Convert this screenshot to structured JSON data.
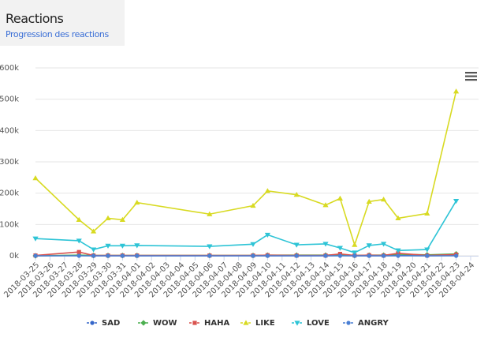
{
  "header": {
    "title": "Reactions",
    "subtitle": "Progression des reactions"
  },
  "chart_data": {
    "type": "line",
    "x": [
      "2018-03-25",
      "2018-03-28",
      "2018-03-29",
      "2018-03-30",
      "2018-03-31",
      "2018-04-01",
      "2018-04-06",
      "2018-04-09",
      "2018-04-10",
      "2018-04-12",
      "2018-04-14",
      "2018-04-15",
      "2018-04-16",
      "2018-04-17",
      "2018-04-18",
      "2018-04-19",
      "2018-04-21",
      "2018-04-23"
    ],
    "xlim": [
      "2018-03-25",
      "2018-04-24"
    ],
    "xticks": [
      "2018-03-25",
      "2018-03-26",
      "2018-03-27",
      "2018-03-28",
      "2018-03-29",
      "2018-03-30",
      "2018-03-31",
      "2018-04-01",
      "2018-04-02",
      "2018-04-03",
      "2018-04-04",
      "2018-04-05",
      "2018-04-06",
      "2018-04-07",
      "2018-04-08",
      "2018-04-09",
      "2018-04-10",
      "2018-04-11",
      "2018-04-12",
      "2018-04-13",
      "2018-04-14",
      "2018-04-15",
      "2018-04-16",
      "2018-04-17",
      "2018-04-18",
      "2018-04-19",
      "2018-04-20",
      "2018-04-21",
      "2018-04-22",
      "2018-04-23",
      "2018-04-24"
    ],
    "ylim": [
      0,
      600000
    ],
    "yticks": [
      {
        "value": 0,
        "label": "0k"
      },
      {
        "value": 100000,
        "label": "100k"
      },
      {
        "value": 200000,
        "label": "200k"
      },
      {
        "value": 300000,
        "label": "300k"
      },
      {
        "value": 400000,
        "label": "400k"
      },
      {
        "value": 500000,
        "label": "500k"
      },
      {
        "value": 600000,
        "label": "600k"
      }
    ],
    "grid": true,
    "legend": "bottom",
    "series": [
      {
        "name": "SAD",
        "color": "#3566c9",
        "marker": "circle",
        "values": [
          0,
          1000,
          0,
          0,
          0,
          0,
          0,
          0,
          0,
          0,
          0,
          1000,
          0,
          0,
          0,
          1000,
          0,
          1000
        ]
      },
      {
        "name": "WOW",
        "color": "#4caf50",
        "marker": "diamond",
        "values": [
          0,
          2000,
          1000,
          1000,
          1000,
          1000,
          1000,
          1000,
          2000,
          2000,
          2000,
          3000,
          1000,
          2000,
          2000,
          5000,
          3000,
          6000
        ]
      },
      {
        "name": "HAHA",
        "color": "#d9534f",
        "marker": "square",
        "values": [
          1000,
          12000,
          1000,
          1000,
          1000,
          1000,
          1000,
          1000,
          2000,
          1000,
          1000,
          6000,
          1000,
          2000,
          1000,
          8000,
          1000,
          4000
        ]
      },
      {
        "name": "LIKE",
        "color": "#d8da22",
        "marker": "triangle",
        "values": [
          248000,
          115000,
          78000,
          120000,
          115000,
          170000,
          133000,
          160000,
          207000,
          195000,
          162000,
          183000,
          35000,
          173000,
          180000,
          120000,
          135000,
          525000
        ]
      },
      {
        "name": "LOVE",
        "color": "#2ec4d6",
        "marker": "triangle-down",
        "values": [
          55000,
          48000,
          20000,
          32000,
          32000,
          33000,
          30000,
          37000,
          67000,
          35000,
          38000,
          25000,
          10000,
          33000,
          38000,
          17000,
          20000,
          175000
        ]
      },
      {
        "name": "ANGRY",
        "color": "#4a7fd4",
        "marker": "circle",
        "values": [
          0,
          0,
          0,
          0,
          0,
          0,
          0,
          0,
          0,
          0,
          0,
          0,
          0,
          0,
          0,
          0,
          0,
          0
        ]
      }
    ]
  }
}
